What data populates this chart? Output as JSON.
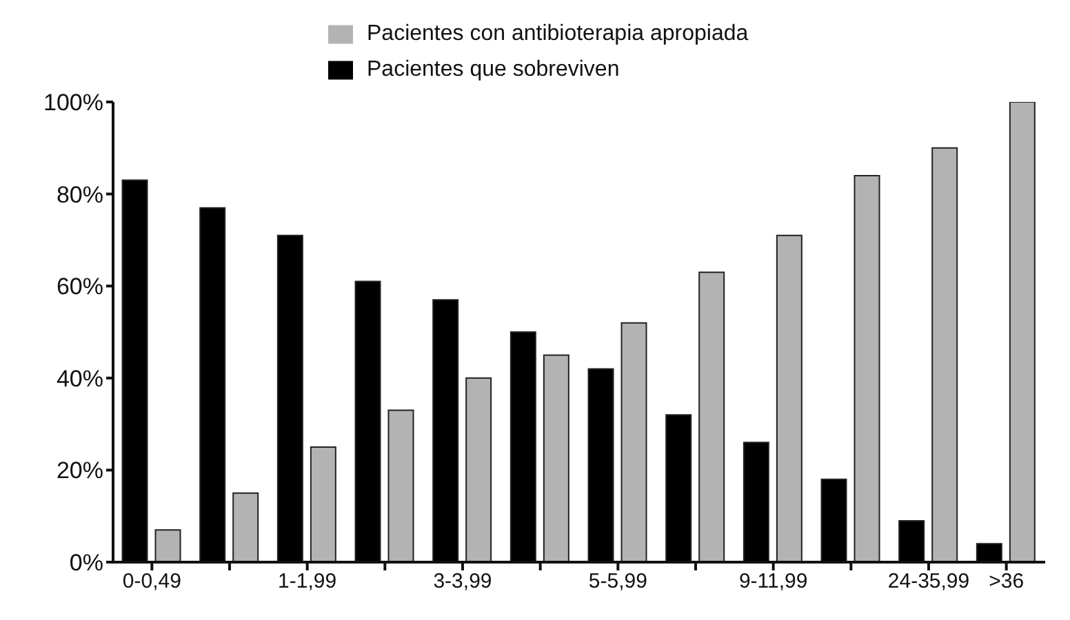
{
  "chart_data": {
    "type": "bar",
    "categories": [
      "0-0,49",
      null,
      "1-1,99",
      null,
      "3-3,99",
      null,
      "5-5,99",
      null,
      "9-11,99",
      null,
      "24-35,99",
      ">36"
    ],
    "series": [
      {
        "name": "Pacientes que sobreviven",
        "color": "#000000",
        "values": [
          83,
          77,
          71,
          61,
          57,
          50,
          42,
          32,
          26,
          18,
          9,
          4
        ]
      },
      {
        "name": "Pacientes con antibioterapia apropiada",
        "color": "#b3b3b3",
        "values": [
          7,
          15,
          25,
          33,
          40,
          45,
          52,
          63,
          71,
          84,
          90,
          100
        ]
      }
    ],
    "ylim": [
      0,
      100
    ],
    "yticks": [
      {
        "value": 0,
        "label": "0%"
      },
      {
        "value": 20,
        "label": "20%"
      },
      {
        "value": 40,
        "label": "40%"
      },
      {
        "value": 60,
        "label": "60%"
      },
      {
        "value": 80,
        "label": "80%"
      },
      {
        "value": 100,
        "label": "100%"
      }
    ],
    "grid": false,
    "legend": "top"
  }
}
